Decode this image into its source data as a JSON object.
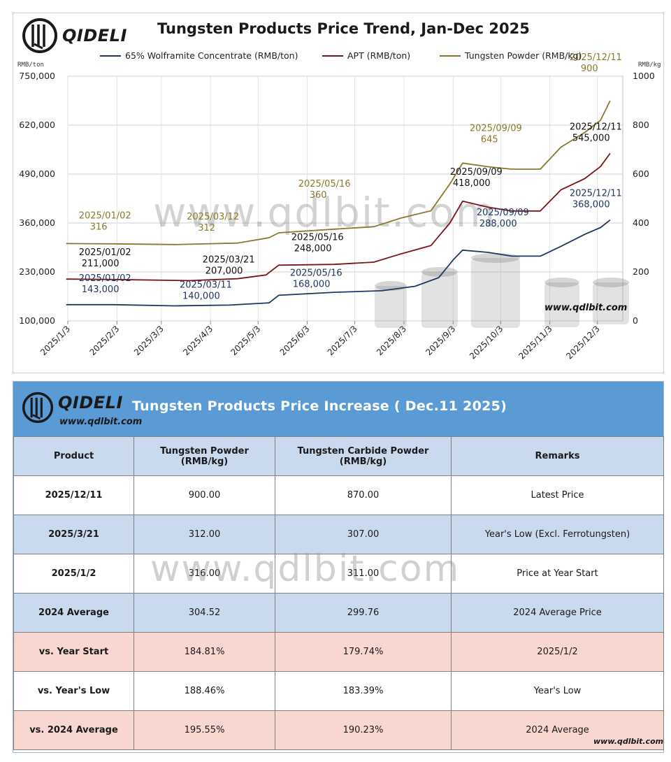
{
  "brand": {
    "name": "QIDELI",
    "site": "www.qdlbit.com",
    "watermark": "www.qdlbit.com"
  },
  "chart_data": {
    "type": "line",
    "title": "Tungsten Products Price Trend, Jan-Dec 2025",
    "left_unit": "RMB/ton",
    "right_unit": "RMB/kg",
    "ylim_left": [
      100000,
      750000
    ],
    "ylim_right": [
      0,
      1000
    ],
    "yticks_left": [
      "100,000",
      "230,000",
      "360,000",
      "490,000",
      "620,000",
      "750,000"
    ],
    "yticks_right": [
      "0",
      "200",
      "400",
      "600",
      "800",
      "1000"
    ],
    "x_ticks": [
      "2025/1/3",
      "2025/2/3",
      "2025/3/3",
      "2025/4/3",
      "2025/5/3",
      "2025/6/3",
      "2025/7/3",
      "2025/8/3",
      "2025/9/3",
      "2025/10/3",
      "2025/11/3",
      "2025/12/3"
    ],
    "grid": true,
    "legend_position": "top",
    "series": [
      {
        "name": "65% Wolframite Concentrate (RMB/ton)",
        "axis": "left",
        "color": "#1f3864",
        "points": [
          [
            "2025/1/2",
            143000
          ],
          [
            "2025/2/1",
            143000
          ],
          [
            "2025/3/11",
            140000
          ],
          [
            "2025/4/15",
            142000
          ],
          [
            "2025/5/10",
            148000
          ],
          [
            "2025/5/16",
            168000
          ],
          [
            "2025/6/20",
            176000
          ],
          [
            "2025/7/20",
            180000
          ],
          [
            "2025/8/10",
            192000
          ],
          [
            "2025/8/25",
            215000
          ],
          [
            "2025/9/3",
            262000
          ],
          [
            "2025/9/9",
            288000
          ],
          [
            "2025/9/25",
            282000
          ],
          [
            "2025/10/10",
            272000
          ],
          [
            "2025/10/28",
            272000
          ],
          [
            "2025/11/10",
            298000
          ],
          [
            "2025/11/25",
            330000
          ],
          [
            "2025/12/5",
            348000
          ],
          [
            "2025/12/11",
            368000
          ]
        ],
        "annotations": [
          {
            "date": "2025/01/02",
            "value": "143,000"
          },
          {
            "date": "2025/03/11",
            "value": "140,000"
          },
          {
            "date": "2025/05/16",
            "value": "168,000"
          },
          {
            "date": "2025/09/09",
            "value": "288,000"
          },
          {
            "date": "2025/12/11",
            "value": "368,000"
          }
        ]
      },
      {
        "name": "APT (RMB/ton)",
        "axis": "left",
        "color": "#7b1416",
        "points": [
          [
            "2025/1/2",
            211000
          ],
          [
            "2025/2/1",
            210000
          ],
          [
            "2025/3/21",
            207000
          ],
          [
            "2025/4/20",
            212000
          ],
          [
            "2025/5/8",
            222000
          ],
          [
            "2025/5/16",
            248000
          ],
          [
            "2025/6/20",
            250000
          ],
          [
            "2025/7/15",
            256000
          ],
          [
            "2025/8/1",
            278000
          ],
          [
            "2025/8/20",
            300000
          ],
          [
            "2025/9/1",
            360000
          ],
          [
            "2025/9/9",
            418000
          ],
          [
            "2025/9/25",
            402000
          ],
          [
            "2025/10/10",
            392000
          ],
          [
            "2025/10/28",
            392000
          ],
          [
            "2025/11/10",
            448000
          ],
          [
            "2025/11/25",
            478000
          ],
          [
            "2025/12/5",
            510000
          ],
          [
            "2025/12/11",
            545000
          ]
        ],
        "annotations": [
          {
            "date": "2025/01/02",
            "value": "211,000"
          },
          {
            "date": "2025/03/21",
            "value": "207,000"
          },
          {
            "date": "2025/05/16",
            "value": "248,000"
          },
          {
            "date": "2025/09/09",
            "value": "418,000"
          },
          {
            "date": "2025/12/11",
            "value": "545,000"
          }
        ]
      },
      {
        "name": "Tungsten Powder (RMB/kg)",
        "axis": "right",
        "color": "#8b7a2b",
        "points": [
          [
            "2025/1/2",
            316
          ],
          [
            "2025/2/1",
            315
          ],
          [
            "2025/3/12",
            312
          ],
          [
            "2025/4/20",
            318
          ],
          [
            "2025/5/10",
            340
          ],
          [
            "2025/5/16",
            360
          ],
          [
            "2025/6/20",
            375
          ],
          [
            "2025/7/15",
            385
          ],
          [
            "2025/8/1",
            420
          ],
          [
            "2025/8/20",
            450
          ],
          [
            "2025/9/1",
            560
          ],
          [
            "2025/9/9",
            645
          ],
          [
            "2025/9/25",
            630
          ],
          [
            "2025/10/10",
            620
          ],
          [
            "2025/10/28",
            620
          ],
          [
            "2025/11/10",
            710
          ],
          [
            "2025/11/25",
            770
          ],
          [
            "2025/12/5",
            820
          ],
          [
            "2025/12/11",
            900
          ]
        ],
        "annotations": [
          {
            "date": "2025/01/02",
            "value": "316"
          },
          {
            "date": "2025/03/12",
            "value": "312"
          },
          {
            "date": "2025/05/16",
            "value": "360"
          },
          {
            "date": "2025/09/09",
            "value": "645"
          },
          {
            "date": "2025/12/11",
            "value": "900"
          }
        ]
      }
    ]
  },
  "table": {
    "title": "Tungsten Products Price Increase ( Dec.11 2025)",
    "headers": [
      "Product",
      "Tungsten Powder (RMB/kg)",
      "Tungsten Carbide Powder (RMB/kg)",
      "Remarks"
    ],
    "rows": [
      {
        "cells": [
          "2025/12/11",
          "900.00",
          "870.00",
          "Latest Price"
        ],
        "tone": "white"
      },
      {
        "cells": [
          "2025/3/21",
          "312.00",
          "307.00",
          "Year's Low (Excl. Ferrotungsten)"
        ],
        "tone": "blue"
      },
      {
        "cells": [
          "2025/1/2",
          "316.00",
          "311.00",
          "Price at Year Start"
        ],
        "tone": "white"
      },
      {
        "cells": [
          "2024 Average",
          "304.52",
          "299.76",
          "2024 Average Price"
        ],
        "tone": "blue"
      },
      {
        "cells": [
          "vs. Year Start",
          "184.81%",
          "179.74%",
          "2025/1/2"
        ],
        "tone": "pink"
      },
      {
        "cells": [
          "vs. Year's Low",
          "188.46%",
          "183.39%",
          "Year's Low"
        ],
        "tone": "white"
      },
      {
        "cells": [
          "vs. 2024 Average",
          "195.55%",
          "190.23%",
          "2024 Average"
        ],
        "tone": "pink"
      }
    ]
  }
}
